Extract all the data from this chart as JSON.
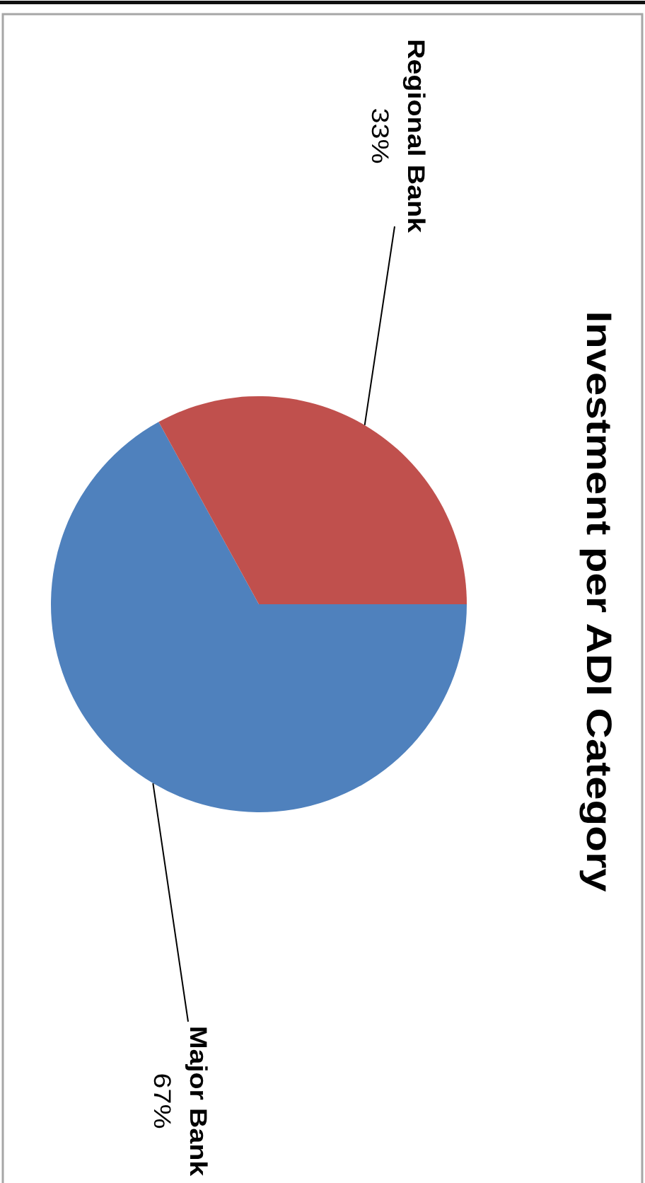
{
  "chart_data": {
    "type": "pie",
    "title": "Investment per ADI Category",
    "categories": [
      "Major Bank",
      "Regional Bank"
    ],
    "values": [
      67,
      33
    ],
    "colors": [
      "#4f81bd",
      "#c0504d"
    ],
    "value_labels": [
      "67%",
      "33%"
    ]
  }
}
